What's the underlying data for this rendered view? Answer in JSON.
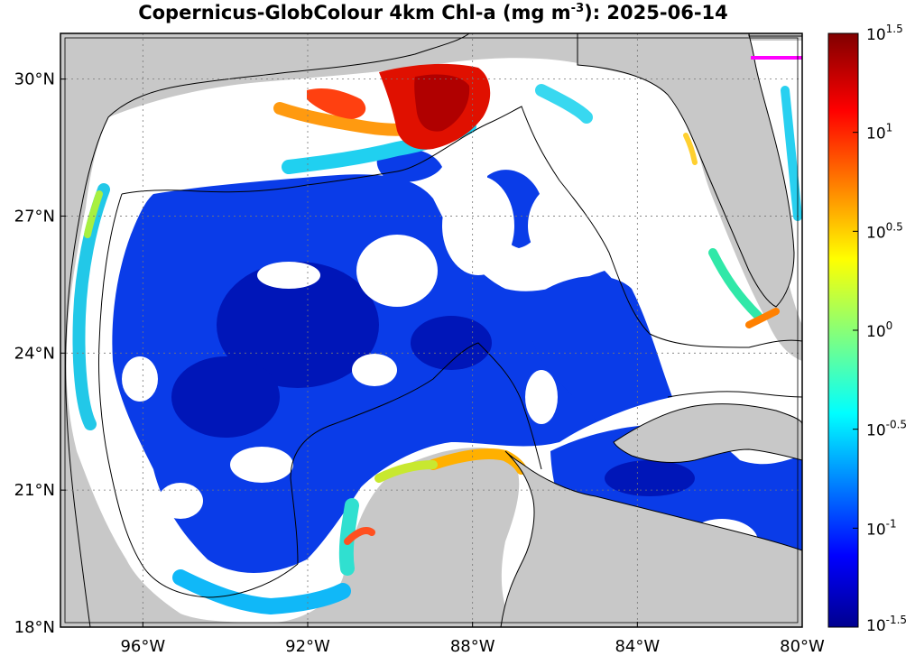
{
  "title": {
    "prefix": "Copernicus-GlobColour 4km Chl-a (mg m",
    "exponent": "-3",
    "suffix": "): 2025-06-14"
  },
  "map": {
    "lon_range": [
      -98,
      -80
    ],
    "lat_range": [
      18,
      31
    ],
    "lon_ticks": [
      {
        "value": -96,
        "label": "96°W"
      },
      {
        "value": -92,
        "label": "92°W"
      },
      {
        "value": -88,
        "label": "88°W"
      },
      {
        "value": -84,
        "label": "84°W"
      },
      {
        "value": -80,
        "label": "80°W"
      }
    ],
    "lat_ticks": [
      {
        "value": 18,
        "label": "18°N"
      },
      {
        "value": 21,
        "label": "21°N"
      },
      {
        "value": 24,
        "label": "24°N"
      },
      {
        "value": 27,
        "label": "27°N"
      },
      {
        "value": 30,
        "label": "30°N"
      }
    ],
    "colors": {
      "land": "#c8c8c8",
      "no_data": "#ffffff",
      "grid": "#777777",
      "marker": "#ff00ff"
    }
  },
  "colorbar": {
    "scale": "log10",
    "range_exponent": [
      -1.5,
      1.5
    ],
    "ticks": [
      {
        "base": "10",
        "exp": "1.5",
        "value": 1.5
      },
      {
        "base": "10",
        "exp": "1",
        "value": 1
      },
      {
        "base": "10",
        "exp": "0.5",
        "value": 0.5
      },
      {
        "base": "10",
        "exp": "0",
        "value": 0
      },
      {
        "base": "10",
        "exp": "-0.5",
        "value": -0.5
      },
      {
        "base": "10",
        "exp": "-1",
        "value": -1
      },
      {
        "base": "10",
        "exp": "-1.5",
        "value": -1.5
      }
    ],
    "colormap": "jet"
  }
}
